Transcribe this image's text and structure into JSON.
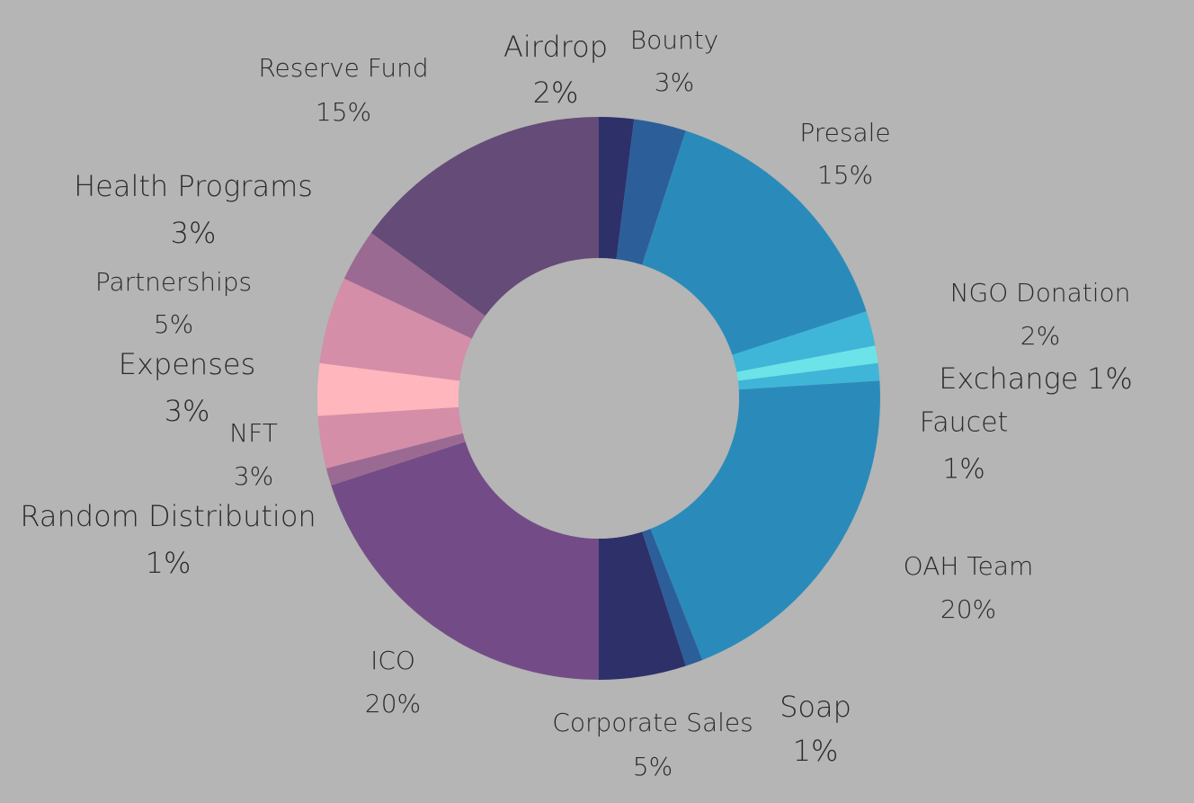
{
  "chart_data": {
    "type": "pie",
    "donut": true,
    "legend": "none",
    "background": "#b4b5b4",
    "slices": [
      {
        "label": "Airdrop",
        "value": 2,
        "display": "2%",
        "color": "#2d3069"
      },
      {
        "label": "Bounty",
        "value": 3,
        "display": "3%",
        "color": "#2c5f9a"
      },
      {
        "label": "Presale",
        "value": 15,
        "display": "15%",
        "color": "#2a8bbb"
      },
      {
        "label": "NGO Donation",
        "value": 2,
        "display": "2%",
        "color": "#3fb6d8"
      },
      {
        "label": "Exchange",
        "value": 1,
        "display": "1%",
        "color": "#6ce3e8"
      },
      {
        "label": "Faucet",
        "value": 1,
        "display": "1%",
        "color": "#3fb6d8"
      },
      {
        "label": "OAH Team",
        "value": 20,
        "display": "20%",
        "color": "#2a8bbb"
      },
      {
        "label": "Soap",
        "value": 1,
        "display": "1%",
        "color": "#2c5f9a"
      },
      {
        "label": "Corporate Sales",
        "value": 5,
        "display": "5%",
        "color": "#2d3069"
      },
      {
        "label": "ICO",
        "value": 20,
        "display": "20%",
        "color": "#734c87"
      },
      {
        "label": "Random Distribution",
        "value": 1,
        "display": "1%",
        "color": "#9b6a93"
      },
      {
        "label": "NFT",
        "value": 3,
        "display": "3%",
        "color": "#d48ea8"
      },
      {
        "label": "Expenses",
        "value": 3,
        "display": "3%",
        "color": "#ffb6bd"
      },
      {
        "label": "Partnerships",
        "value": 5,
        "display": "5%",
        "color": "#d48ea8"
      },
      {
        "label": "Health Programs",
        "value": 3,
        "display": "3%",
        "color": "#9b6a93"
      },
      {
        "label": "Reserve Fund",
        "value": 15,
        "display": "15%",
        "color": "#654b78"
      }
    ]
  }
}
